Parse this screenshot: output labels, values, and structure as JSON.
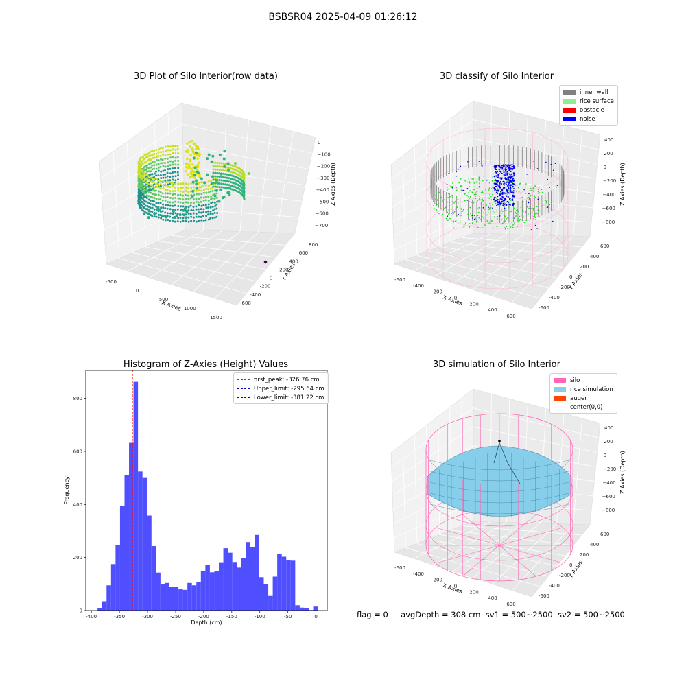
{
  "figure": {
    "suptitle": "BSBSR04 2025-04-09 01:26:12",
    "status": {
      "flag": "flag = 0",
      "avg": "avgDepth = 308 cm",
      "sv1": "sv1 = 500~2500",
      "sv2": "sv2 = 500~2500"
    }
  },
  "chart_data": [
    {
      "type": "scatter",
      "title": "3D Plot of Silo Interior(row data)",
      "xlabel": "X Axies",
      "ylabel": "Y Axies",
      "zlabel": "Z Axies (Depth)",
      "x_ticks": [
        "-500",
        "0",
        "500",
        "1000",
        "1500"
      ],
      "y_ticks": [
        "-600",
        "-400",
        "-200",
        "0",
        "200",
        "400",
        "600",
        "800"
      ],
      "z_ticks": [
        "0",
        "−100",
        "−200",
        "−300",
        "−400",
        "−500",
        "−600",
        "−700"
      ],
      "colormap": "viridis",
      "colors": {
        "high": "#d7e219",
        "mid": "#2fb47c",
        "low": "#440154"
      },
      "grid": true
    },
    {
      "type": "scatter",
      "title": "3D classify of Silo Interior",
      "xlabel": "X Axies",
      "ylabel": "Y Axies",
      "zlabel": "Z Axies (Depth)",
      "x_ticks": [
        "-600",
        "-400",
        "-200",
        "0",
        "200",
        "400",
        "600"
      ],
      "y_ticks": [
        "-600",
        "-400",
        "-200",
        "0",
        "200",
        "400",
        "600"
      ],
      "z_ticks": [
        "400",
        "200",
        "0",
        "−200",
        "−400",
        "−600",
        "−800"
      ],
      "legend": [
        {
          "label": "inner wall",
          "color": "#808080"
        },
        {
          "label": "rice surface",
          "color": "#90ee90"
        },
        {
          "label": "obstacle",
          "color": "#ff0000"
        },
        {
          "label": "noise",
          "color": "#0000ff"
        }
      ],
      "legend_position": "top-right",
      "grid": true
    },
    {
      "type": "bar",
      "title": "Histogram of Z-Axies (Height) Values",
      "xlabel": "Depth (cm)",
      "ylabel": "Frequency",
      "xlim": [
        -410,
        20
      ],
      "ylim": [
        0,
        905
      ],
      "x_ticks": [
        -400,
        -350,
        -300,
        -250,
        -200,
        -150,
        -100,
        -50,
        0
      ],
      "y_ticks": [
        0,
        200,
        400,
        600,
        800
      ],
      "bin_width": 8,
      "bins_start": [
        -389,
        -381,
        -373,
        -365,
        -357,
        -349,
        -341,
        -333,
        -325,
        -317,
        -309,
        -301,
        -293,
        -285,
        -277,
        -269,
        -261,
        -253,
        -245,
        -237,
        -229,
        -221,
        -213,
        -205,
        -197,
        -189,
        -181,
        -173,
        -165,
        -157,
        -149,
        -141,
        -133,
        -125,
        -117,
        -109,
        -101,
        -93,
        -85,
        -77,
        -69,
        -61,
        -53,
        -45,
        -37,
        -29,
        -21,
        -13,
        -5
      ],
      "values": [
        10,
        35,
        95,
        175,
        248,
        393,
        510,
        632,
        862,
        524,
        500,
        358,
        243,
        143,
        100,
        104,
        88,
        90,
        80,
        78,
        104,
        95,
        108,
        148,
        172,
        144,
        150,
        182,
        235,
        218,
        183,
        162,
        197,
        258,
        240,
        285,
        126,
        100,
        55,
        128,
        213,
        203,
        191,
        188,
        20,
        11,
        8,
        2,
        15
      ],
      "bar_color": "#4f4fff",
      "vlines": [
        {
          "label": "first_peak: -326.76 cm",
          "x": -326.76,
          "color": "#ff0000"
        },
        {
          "label": "Upper_limit: -295.64 cm",
          "x": -295.64,
          "color": "#0000cc"
        },
        {
          "label": "Lower_limit: -381.22 cm",
          "x": -381.22,
          "color": "#0000cc"
        }
      ],
      "legend_position": "top-right"
    },
    {
      "type": "area",
      "title": "3D simulation of Silo Interior",
      "xlabel": "X Axies",
      "ylabel": "Y Axies",
      "zlabel": "Z Axies (Depth)",
      "x_ticks": [
        "-600",
        "-400",
        "-200",
        "0",
        "200",
        "400",
        "600"
      ],
      "y_ticks": [
        "-600",
        "-400",
        "-200",
        "0",
        "200",
        "400",
        "600"
      ],
      "z_ticks": [
        "400",
        "200",
        "0",
        "−200",
        "−400",
        "−600",
        "−800"
      ],
      "legend": [
        {
          "label": "silo",
          "color": "#ff69b4"
        },
        {
          "label": "rice simulation",
          "color": "#87ceeb"
        },
        {
          "label": "auger",
          "color": "#ff4500"
        },
        {
          "label": "center(0,0)",
          "color": ""
        }
      ],
      "legend_position": "top-right",
      "grid": true
    }
  ]
}
